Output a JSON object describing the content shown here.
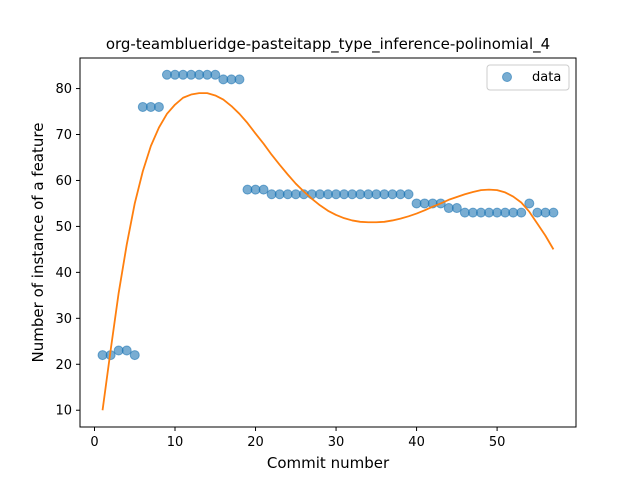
{
  "chart_data": {
    "type": "scatter",
    "title": "org-teamblueridge-pasteitapp_type_inference-polinomial_4",
    "xlabel": "Commit number",
    "ylabel": "Number of instance of a feature",
    "xlim": [
      -1.8,
      59.8
    ],
    "ylim": [
      6.35,
      86.65
    ],
    "xticks": [
      0,
      10,
      20,
      30,
      40,
      50
    ],
    "yticks": [
      10,
      20,
      30,
      40,
      50,
      60,
      70,
      80
    ],
    "grid": false,
    "legend": {
      "position": "top-right",
      "entries": [
        "data"
      ]
    },
    "series": [
      {
        "name": "data",
        "kind": "scatter",
        "color": "#1f77b4",
        "x": [
          1,
          2,
          3,
          4,
          5,
          6,
          7,
          8,
          9,
          10,
          11,
          12,
          13,
          14,
          15,
          16,
          17,
          18,
          19,
          20,
          21,
          22,
          23,
          24,
          25,
          26,
          27,
          28,
          29,
          30,
          31,
          32,
          33,
          34,
          35,
          36,
          37,
          38,
          39,
          40,
          41,
          42,
          43,
          44,
          45,
          46,
          47,
          48,
          49,
          50,
          51,
          52,
          53,
          54,
          55,
          56,
          57
        ],
        "y": [
          22,
          22,
          23,
          23,
          22,
          76,
          76,
          76,
          83,
          83,
          83,
          83,
          83,
          83,
          83,
          82,
          82,
          82,
          58,
          58,
          58,
          57,
          57,
          57,
          57,
          57,
          57,
          57,
          57,
          57,
          57,
          57,
          57,
          57,
          57,
          57,
          57,
          57,
          57,
          55,
          55,
          55,
          55,
          54,
          54,
          53,
          53,
          53,
          53,
          53,
          53,
          53,
          53,
          55,
          53,
          53,
          53
        ]
      },
      {
        "kind": "line",
        "color": "#ff7f0e",
        "x": [
          1,
          2,
          3,
          4,
          5,
          6,
          7,
          8,
          9,
          10,
          11,
          12,
          13,
          14,
          15,
          16,
          17,
          18,
          19,
          20,
          21,
          22,
          23,
          24,
          25,
          26,
          27,
          28,
          29,
          30,
          31,
          32,
          33,
          34,
          35,
          36,
          37,
          38,
          39,
          40,
          41,
          42,
          43,
          44,
          45,
          46,
          47,
          48,
          49,
          50,
          51,
          52,
          53,
          54,
          55,
          56,
          57
        ],
        "y": [
          10,
          23,
          35.5,
          46,
          55,
          62,
          67.5,
          71.5,
          74.5,
          76.5,
          78,
          78.7,
          79,
          79,
          78.5,
          77.6,
          76.2,
          74.5,
          72.5,
          70.2,
          68,
          65.6,
          63.4,
          61.3,
          59.3,
          57.6,
          56,
          54.6,
          53.4,
          52.5,
          51.8,
          51.3,
          51,
          50.9,
          50.9,
          51,
          51.3,
          51.7,
          52.2,
          52.8,
          53.5,
          54.3,
          55,
          55.8,
          56.4,
          57,
          57.5,
          57.9,
          58,
          57.9,
          57.4,
          56.5,
          55.2,
          53.2,
          50.6,
          48,
          45
        ]
      }
    ]
  }
}
